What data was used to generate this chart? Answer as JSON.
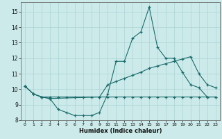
{
  "xlabel": "Humidex (Indice chaleur)",
  "bg_color": "#cceaea",
  "line_color": "#1a6b6b",
  "grid_color": "#aad4d4",
  "xlim": [
    -0.5,
    23.5
  ],
  "ylim": [
    8,
    15.6
  ],
  "xticks": [
    0,
    1,
    2,
    3,
    4,
    5,
    6,
    7,
    8,
    9,
    10,
    11,
    12,
    13,
    14,
    15,
    16,
    17,
    18,
    19,
    20,
    21,
    22,
    23
  ],
  "yticks": [
    8,
    9,
    10,
    11,
    12,
    13,
    14,
    15
  ],
  "line1_x": [
    0,
    1,
    2,
    3,
    4,
    5,
    6,
    7,
    8,
    9,
    10,
    11,
    12,
    13,
    14,
    15,
    16,
    17,
    18,
    19,
    20,
    21,
    22,
    23
  ],
  "line1_y": [
    10.2,
    9.7,
    9.5,
    9.5,
    9.5,
    9.5,
    9.5,
    9.5,
    9.5,
    9.5,
    9.5,
    9.5,
    9.5,
    9.5,
    9.5,
    9.5,
    9.5,
    9.5,
    9.5,
    9.5,
    9.5,
    9.5,
    9.5,
    9.5
  ],
  "line2_x": [
    0,
    1,
    2,
    3,
    9,
    10,
    11,
    12,
    13,
    14,
    15,
    16,
    17,
    18,
    19,
    20,
    21,
    22,
    23
  ],
  "line2_y": [
    10.2,
    9.7,
    9.5,
    9.4,
    9.5,
    10.3,
    10.5,
    10.7,
    10.9,
    11.1,
    11.35,
    11.5,
    11.65,
    11.8,
    11.95,
    12.1,
    11.0,
    10.3,
    10.1
  ],
  "line3_x": [
    0,
    1,
    2,
    3,
    4,
    5,
    6,
    7,
    8,
    9,
    10,
    11,
    12,
    13,
    14,
    15,
    16,
    17,
    18,
    19,
    20,
    21,
    22,
    23
  ],
  "line3_y": [
    10.2,
    9.7,
    9.5,
    9.4,
    8.7,
    8.5,
    8.3,
    8.3,
    8.3,
    8.5,
    9.7,
    11.8,
    11.8,
    13.3,
    13.7,
    15.3,
    12.7,
    12.0,
    12.0,
    11.1,
    10.3,
    10.1,
    9.5,
    9.5
  ]
}
